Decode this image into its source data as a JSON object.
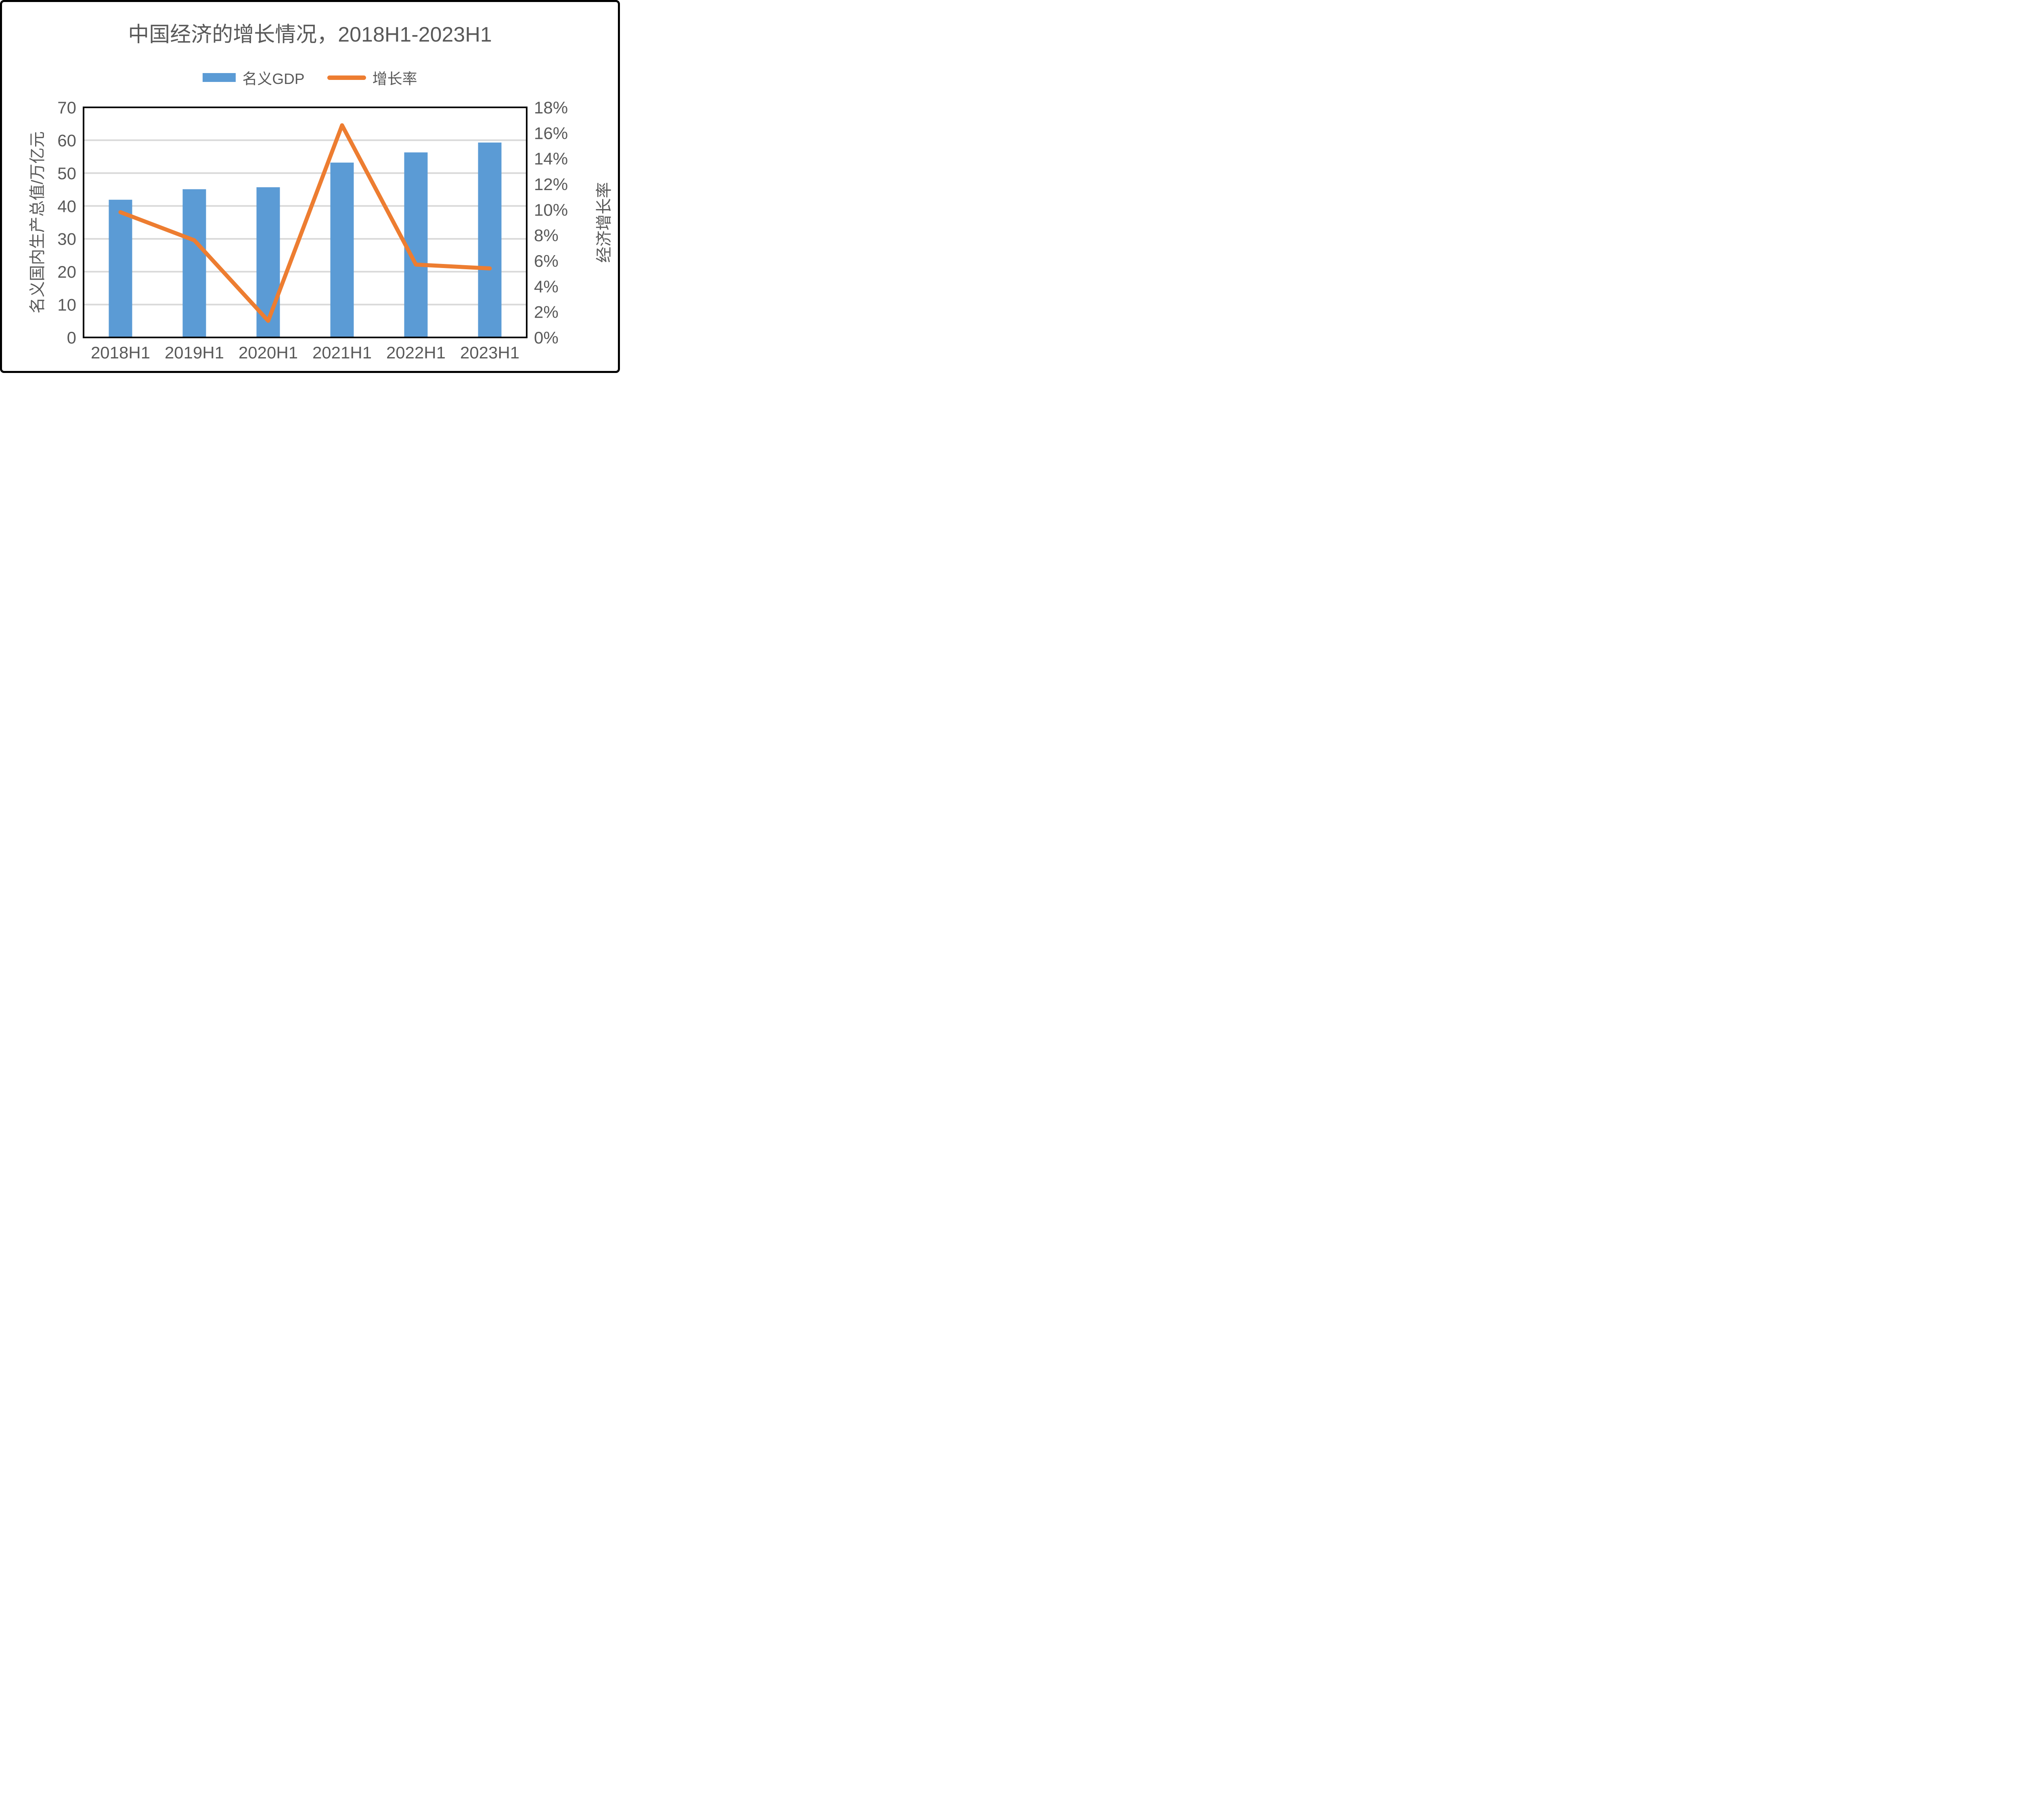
{
  "title": "中国经济的增长情况，2018H1-2023H1",
  "legend": {
    "gdp_label": "名义GDP",
    "growth_label": "增长率"
  },
  "colors": {
    "bar": "#5B9BD5",
    "line": "#ED7D31",
    "text": "#595959",
    "gridline": "#D9D9D9",
    "axis": "#000000",
    "background": "#FFFFFF",
    "border": "#000000"
  },
  "chart_data": {
    "type": "bar+line combo, dual axis",
    "title": "中国经济的增长情况，2018H1-2023H1",
    "categories": [
      "2018H1",
      "2019H1",
      "2020H1",
      "2021H1",
      "2022H1",
      "2023H1"
    ],
    "series": [
      {
        "name": "名义GDP",
        "type": "bar",
        "axis": "left",
        "unit": "万亿元",
        "values": [
          41.9,
          45.1,
          45.7,
          53.2,
          56.3,
          59.3
        ]
      },
      {
        "name": "增长率",
        "type": "line",
        "axis": "right",
        "unit": "%",
        "values": [
          9.8,
          7.6,
          1.3,
          16.6,
          5.7,
          5.4
        ]
      }
    ],
    "y_left": {
      "title": "名义国内生产总值/万亿元",
      "min": 0,
      "max": 70,
      "step": 10,
      "ticks": [
        "0",
        "10",
        "20",
        "30",
        "40",
        "50",
        "60",
        "70"
      ]
    },
    "y_right": {
      "title": "经济增长率",
      "min": 0,
      "max": 18,
      "step": 2,
      "ticks": [
        "0%",
        "2%",
        "4%",
        "6%",
        "8%",
        "10%",
        "12%",
        "14%",
        "16%",
        "18%"
      ]
    },
    "grid": true,
    "legend_position": "top"
  }
}
